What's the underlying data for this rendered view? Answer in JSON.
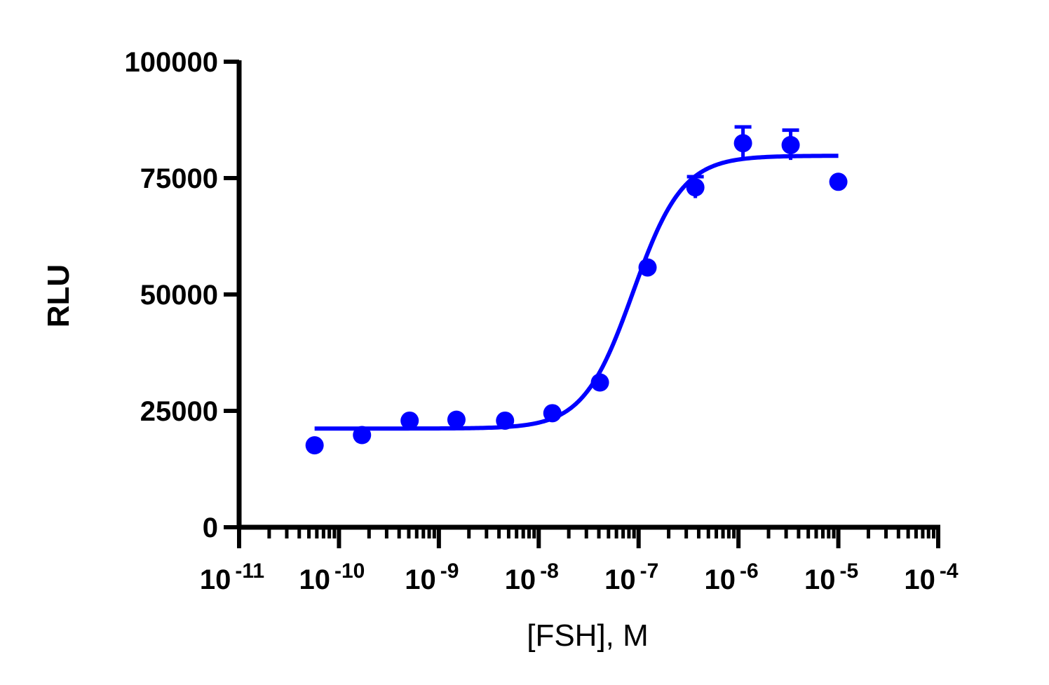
{
  "chart_data": {
    "type": "scatter",
    "xlabel": "[FSH], M",
    "ylabel": "RLU",
    "x_scale": "log",
    "xlim": [
      1e-11,
      0.0001
    ],
    "ylim": [
      0,
      100000
    ],
    "x_ticks": [
      {
        "base": "10",
        "exp": "-11"
      },
      {
        "base": "10",
        "exp": "-10"
      },
      {
        "base": "10",
        "exp": "-9"
      },
      {
        "base": "10",
        "exp": "-8"
      },
      {
        "base": "10",
        "exp": "-7"
      },
      {
        "base": "10",
        "exp": "-6"
      },
      {
        "base": "10",
        "exp": "-5"
      },
      {
        "base": "10",
        "exp": "-4"
      }
    ],
    "y_ticks": [
      "0",
      "25000",
      "50000",
      "75000",
      "100000"
    ],
    "y_tick_values": [
      0,
      25000,
      50000,
      75000,
      100000
    ],
    "grid": false,
    "color": "#0000ff",
    "series": [
      {
        "points": [
          {
            "x": 5.7e-11,
            "y": 17600,
            "err": 0
          },
          {
            "x": 1.7e-10,
            "y": 19800,
            "err": 0
          },
          {
            "x": 5.1e-10,
            "y": 22900,
            "err": 0
          },
          {
            "x": 1.5e-09,
            "y": 23100,
            "err": 0
          },
          {
            "x": 4.6e-09,
            "y": 22900,
            "err": 0
          },
          {
            "x": 1.37e-08,
            "y": 24500,
            "err": 0
          },
          {
            "x": 4.1e-08,
            "y": 31100,
            "err": 0
          },
          {
            "x": 1.23e-07,
            "y": 55800,
            "err": 0
          },
          {
            "x": 3.7e-07,
            "y": 73000,
            "err": 2300
          },
          {
            "x": 1.11e-06,
            "y": 82500,
            "err": 3500
          },
          {
            "x": 3.33e-06,
            "y": 82100,
            "err": 3200
          },
          {
            "x": 1e-05,
            "y": 74200,
            "err": 0
          }
        ],
        "fit": {
          "model": "four-parameter logistic",
          "bottom": 21200,
          "top": 79800,
          "ec50": 8.8e-08,
          "hill": 1.75,
          "x_range": [
            5.7e-11,
            1e-05
          ]
        }
      }
    ]
  }
}
